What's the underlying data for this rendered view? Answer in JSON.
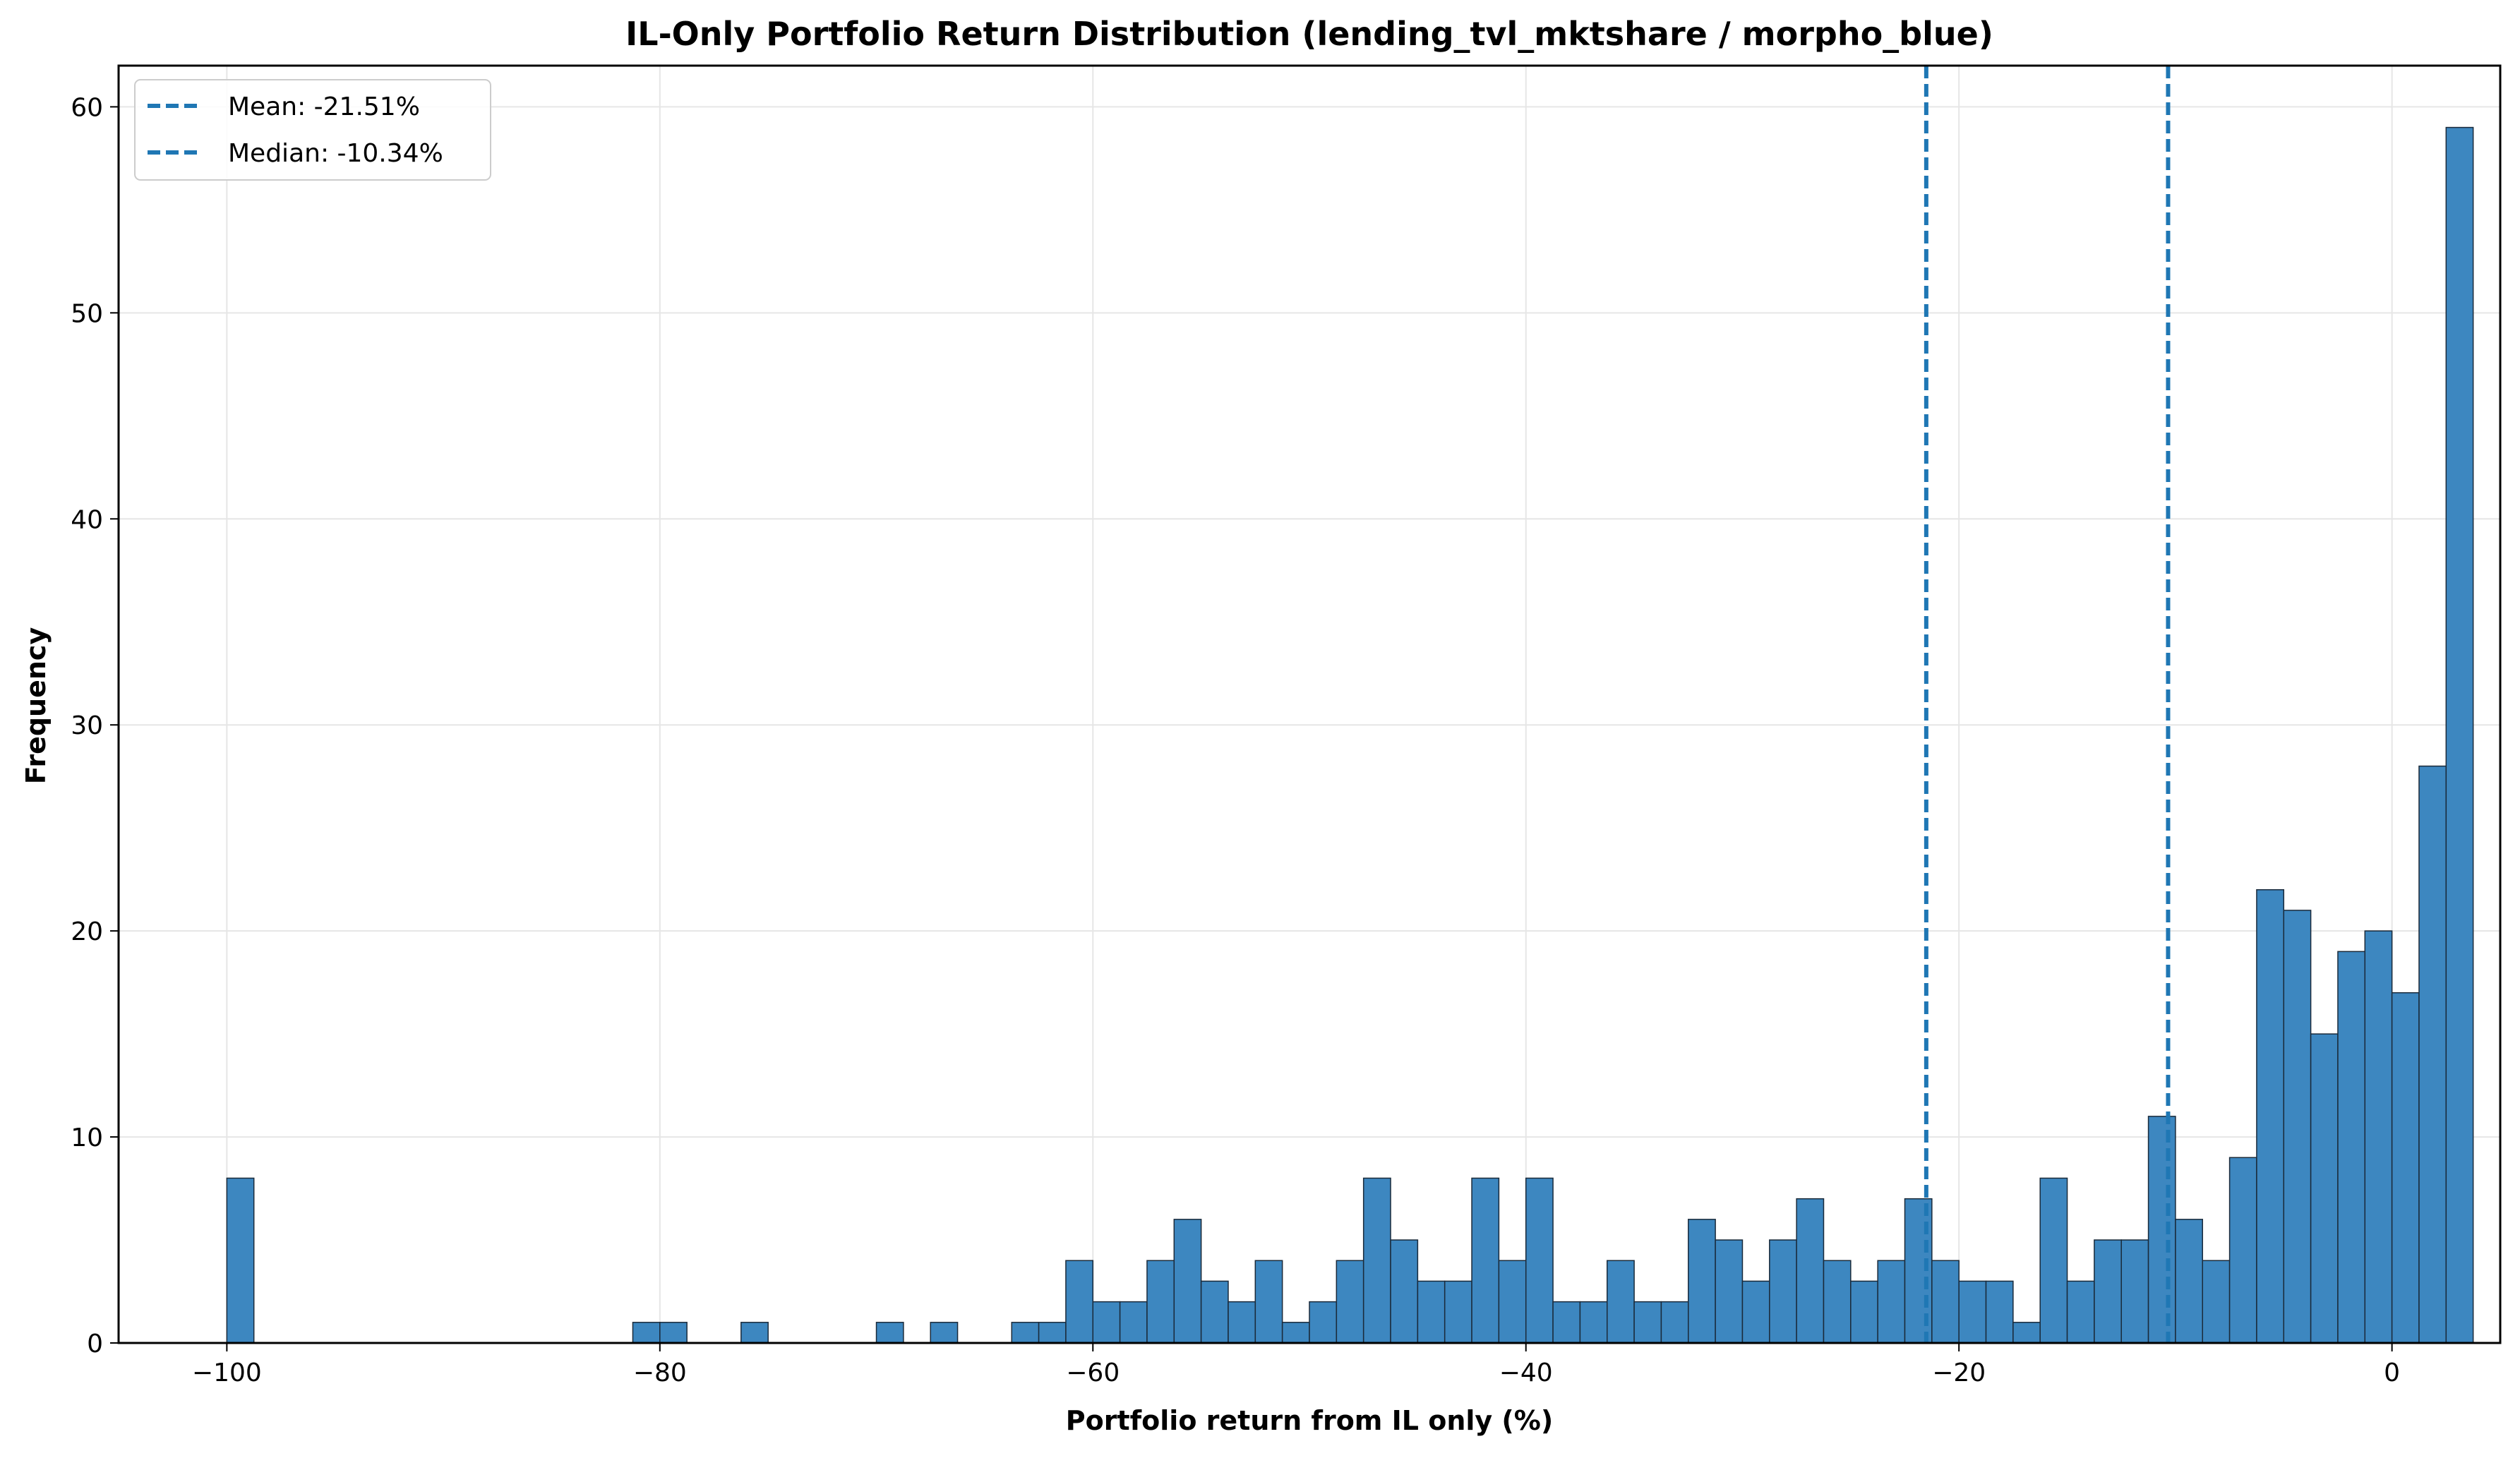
{
  "colors": {
    "bar_fill": "#3d87c0",
    "bar_edge": "#1a2a3a",
    "line": "#1f77b4",
    "grid": "#e6e6e6"
  },
  "chart_data": {
    "type": "bar",
    "title": "IL-Only Portfolio Return Distribution (lending_tvl_mktshare / morpho_blue)",
    "xlabel": "Portfolio return from IL only (%)",
    "ylabel": "Frequency",
    "xlim": [
      -105,
      5
    ],
    "ylim": [
      0,
      62
    ],
    "xticks": [
      -100,
      -80,
      -60,
      -40,
      -20,
      0
    ],
    "xtick_labels": [
      "−100",
      "−80",
      "−60",
      "−40",
      "−20",
      "0"
    ],
    "yticks": [
      0,
      10,
      20,
      30,
      40,
      50,
      60
    ],
    "ytick_labels": [
      "0",
      "10",
      "20",
      "30",
      "40",
      "50",
      "60"
    ],
    "grid": true,
    "legend_position": "top-left",
    "bin_start": -100,
    "bin_width": 1.25,
    "values": [
      8,
      0,
      0,
      0,
      0,
      0,
      0,
      0,
      0,
      0,
      0,
      0,
      0,
      0,
      0,
      1,
      1,
      0,
      0,
      1,
      0,
      0,
      0,
      0,
      1,
      0,
      1,
      0,
      0,
      1,
      1,
      4,
      2,
      2,
      4,
      6,
      3,
      2,
      4,
      1,
      2,
      4,
      8,
      5,
      3,
      3,
      8,
      4,
      8,
      2,
      2,
      4,
      2,
      2,
      6,
      5,
      3,
      5,
      7,
      4,
      3,
      4,
      7,
      4,
      3,
      3,
      1,
      8,
      3,
      5,
      5,
      11,
      6,
      4,
      9,
      22,
      21,
      15,
      19,
      20,
      17,
      28,
      59
    ],
    "reference_lines": [
      {
        "label": "Mean: -21.51%",
        "x": -21.51
      },
      {
        "label": "Median: -10.34%",
        "x": -10.34
      }
    ]
  }
}
